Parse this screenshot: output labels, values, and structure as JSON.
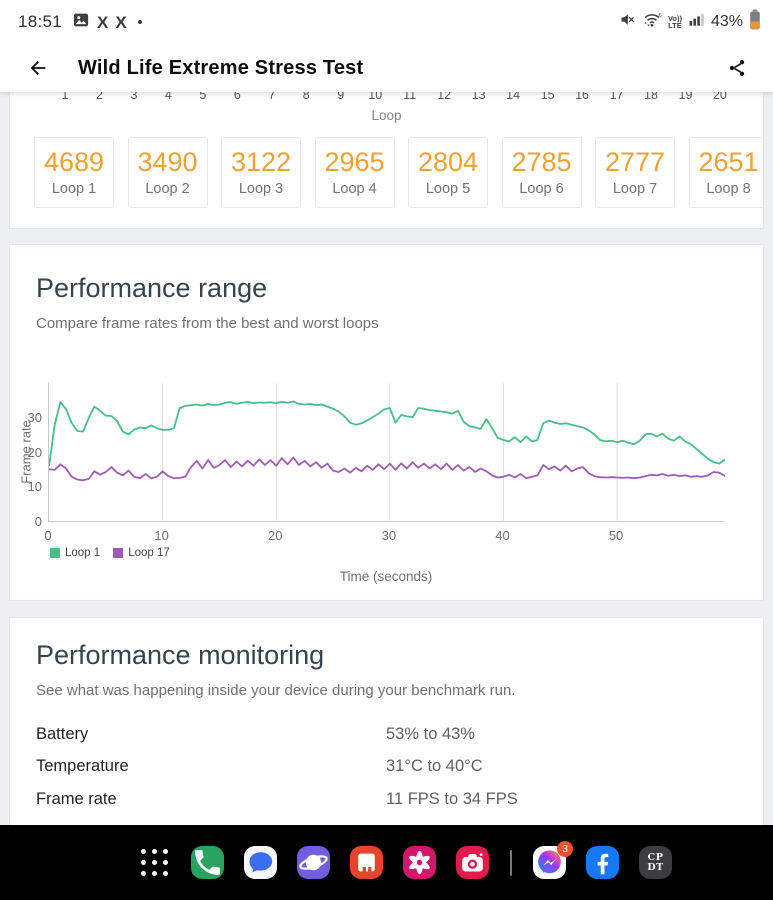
{
  "status_bar": {
    "time": "18:51",
    "battery_percent": "43%",
    "wifi_generation": "6",
    "volte_line1": "Vo))",
    "volte_line2": "LTE"
  },
  "header": {
    "title": "Wild Life Extreme Stress Test"
  },
  "loop_axis": {
    "label": "Loop",
    "ticks": [
      "1",
      "2",
      "3",
      "4",
      "5",
      "6",
      "7",
      "8",
      "9",
      "10",
      "11",
      "12",
      "13",
      "14",
      "15",
      "16",
      "17",
      "18",
      "19",
      "20"
    ]
  },
  "scores": {
    "accent_color": "#f0a132",
    "cards": [
      {
        "score": "4689",
        "label": "Loop 1"
      },
      {
        "score": "3490",
        "label": "Loop 2"
      },
      {
        "score": "3122",
        "label": "Loop 3"
      },
      {
        "score": "2965",
        "label": "Loop 4"
      },
      {
        "score": "2804",
        "label": "Loop 5"
      },
      {
        "score": "2785",
        "label": "Loop 6"
      },
      {
        "score": "2777",
        "label": "Loop 7"
      },
      {
        "score": "2651",
        "label": "Loop 8"
      }
    ]
  },
  "performance_range": {
    "title": "Performance range",
    "subtitle": "Compare frame rates from the best and worst loops"
  },
  "chart_data": {
    "type": "line",
    "xlabel": "Time (seconds)",
    "ylabel": "Frame rate",
    "xlim": [
      0,
      59.5
    ],
    "ylim": [
      0,
      40
    ],
    "x_ticks": [
      0,
      10,
      20,
      30,
      40,
      50
    ],
    "y_ticks": [
      0,
      10,
      20,
      30
    ],
    "grid": "vertical-only",
    "legend_position": "bottom-left",
    "sample_step_seconds": 0.5,
    "series": [
      {
        "name": "Loop 1",
        "color": "#45c183",
        "values": [
          16,
          28,
          34.5,
          32.5,
          28.5,
          26.2,
          26,
          30,
          33.2,
          32,
          30.6,
          30.5,
          29,
          26,
          25.2,
          26.6,
          27.2,
          27,
          27.8,
          27,
          26.5,
          26.5,
          27,
          32.8,
          33.4,
          33.6,
          33.8,
          33.5,
          34,
          33.6,
          33.8,
          34.3,
          34.5,
          34,
          34.3,
          34.6,
          34.2,
          34.4,
          34.3,
          34.5,
          34.2,
          34.6,
          34.3,
          34.7,
          34,
          33.8,
          34,
          33.6,
          33.8,
          33.2,
          32.6,
          31.8,
          30.4,
          28.6,
          28,
          28.4,
          29.2,
          30.2,
          31.2,
          32.4,
          32.8,
          28.6,
          30.8,
          30.4,
          30.2,
          32.8,
          32.6,
          32.2,
          32,
          31.8,
          31.6,
          31.2,
          32,
          28.8,
          27.6,
          27.2,
          26.8,
          29.6,
          27,
          24.2,
          23.6,
          23.2,
          24.4,
          23,
          24.6,
          23.2,
          23.6,
          28.4,
          29.2,
          28.6,
          28.2,
          28.4,
          28,
          27.6,
          27.2,
          26.4,
          25.2,
          23.6,
          23.2,
          23.4,
          23,
          23.4,
          22.8,
          22.4,
          23.4,
          25.2,
          25.4,
          24.6,
          25.4,
          24,
          23.4,
          24.6,
          23.2,
          22.4,
          21,
          19.6,
          18.2,
          17.2,
          16.8,
          18
        ]
      },
      {
        "name": "Loop 17",
        "color": "#a05cb5",
        "values": [
          15.2,
          15,
          16.6,
          15.4,
          13,
          12.2,
          12,
          12.4,
          14.6,
          13.6,
          14.4,
          15.8,
          14.2,
          13.4,
          14.8,
          13,
          12.6,
          13.8,
          12.6,
          13,
          14.6,
          13.2,
          12.6,
          12.7,
          13,
          15.8,
          17.6,
          15.4,
          17.8,
          15.6,
          16.4,
          17.8,
          15.8,
          17.4,
          16,
          17.6,
          16.2,
          18,
          16.4,
          17.8,
          16.2,
          18.4,
          16.6,
          18.6,
          16.4,
          17.6,
          16,
          17.2,
          15.6,
          16.8,
          14.8,
          14.4,
          15.4,
          14.2,
          15.6,
          14.6,
          16.2,
          15,
          16.6,
          15.2,
          16.8,
          15,
          16.9,
          15.4,
          17.2,
          15.6,
          16.8,
          15.4,
          16.6,
          15.2,
          16.8,
          15,
          16.4,
          14.8,
          15.8,
          14.4,
          15.4,
          14.6,
          13.4,
          12.8,
          13,
          13.6,
          12.8,
          13.8,
          12.6,
          13,
          13.4,
          16.4,
          15.2,
          16,
          14.8,
          16.2,
          14.6,
          15.4,
          15.8,
          14,
          13.2,
          12.9,
          12.8,
          12.9,
          12.8,
          12.7,
          12.8,
          12.6,
          12.8,
          13.2,
          13.6,
          13.4,
          13.8,
          13.3,
          13.6,
          13.2,
          13.4,
          13,
          13.2,
          13,
          13.4,
          14.4,
          14.2,
          13.2
        ]
      }
    ]
  },
  "performance_monitoring": {
    "title": "Performance monitoring",
    "subtitle": "See what was happening inside your device during your benchmark run.",
    "rows": [
      {
        "label": "Battery",
        "value": "53% to 43%"
      },
      {
        "label": "Temperature",
        "value": "31°C to 40°C"
      },
      {
        "label": "Frame rate",
        "value": "11 FPS to 34 FPS"
      }
    ]
  },
  "dock": {
    "items": [
      {
        "name": "app-drawer-button",
        "glyph": "grid-dots",
        "bg": "transparent"
      },
      {
        "name": "phone-app-icon",
        "glyph": "phone",
        "bg": "#27a35e"
      },
      {
        "name": "messages-app-icon",
        "glyph": "chat",
        "bg": "#f6f7f8",
        "glyph_color": "#3b6ef0"
      },
      {
        "name": "internet-app-icon",
        "glyph": "globe",
        "bg": "#6f5fe0"
      },
      {
        "name": "notes-app-icon",
        "glyph": "blocks",
        "bg": "#e8432c"
      },
      {
        "name": "gallery-app-icon",
        "glyph": "flower",
        "bg": "#d6156c"
      },
      {
        "name": "camera-app-icon",
        "glyph": "camera",
        "bg": "#e11b4c"
      },
      {
        "name": "dock-divider",
        "glyph": "divider"
      },
      {
        "name": "messenger-app-icon",
        "glyph": "messenger",
        "bg": "#ffffff",
        "badge": "3",
        "badge_color": "#f4502c"
      },
      {
        "name": "facebook-app-icon",
        "glyph": "facebook",
        "bg": "#1877f2"
      },
      {
        "name": "cpdt-app-icon",
        "glyph": "cpdt",
        "bg": "#3d3d41",
        "label": "CP DT"
      }
    ]
  }
}
